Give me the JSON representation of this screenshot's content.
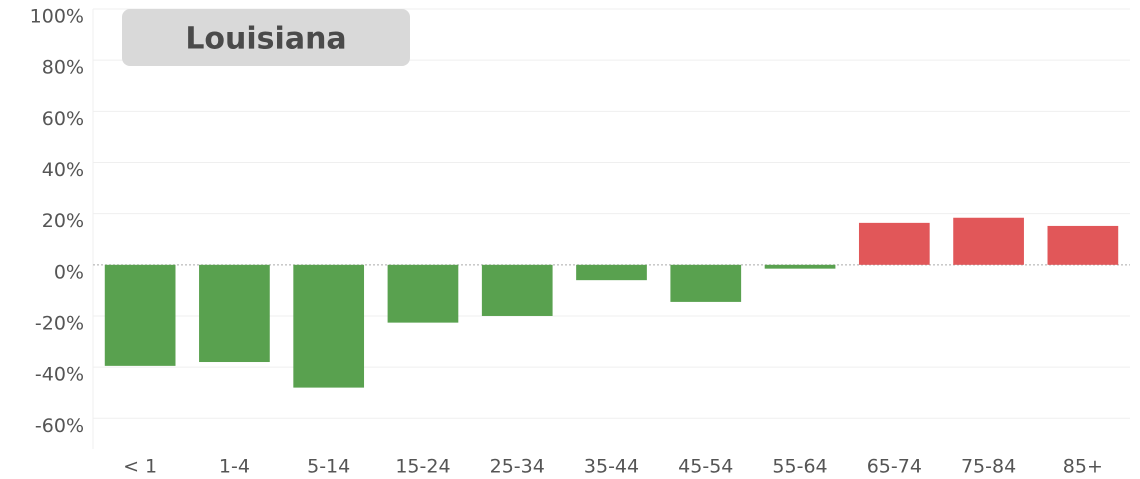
{
  "chart_data": {
    "type": "bar",
    "title": "Louisiana",
    "categories": [
      "< 1",
      "1-4",
      "5-14",
      "15-24",
      "25-34",
      "35-44",
      "45-54",
      "55-64",
      "65-74",
      "75-84",
      "85+"
    ],
    "values": [
      -39.5,
      -38,
      -48,
      -22.6,
      -20,
      -6,
      -14.5,
      -1.5,
      16.4,
      18.4,
      15.2
    ],
    "colors": [
      "#59a14f",
      "#59a14f",
      "#59a14f",
      "#59a14f",
      "#59a14f",
      "#59a14f",
      "#59a14f",
      "#59a14f",
      "#e15759",
      "#e15759",
      "#e15759"
    ],
    "ylim": [
      -72,
      100
    ],
    "yticks": [
      {
        "value": -60,
        "label": "-60%"
      },
      {
        "value": -40,
        "label": "-40%"
      },
      {
        "value": -20,
        "label": "-20%"
      },
      {
        "value": 0,
        "label": "0%"
      },
      {
        "value": 20,
        "label": "20%"
      },
      {
        "value": 40,
        "label": "40%"
      },
      {
        "value": 60,
        "label": "60%"
      },
      {
        "value": 80,
        "label": "80%"
      },
      {
        "value": 100,
        "label": "100%"
      }
    ],
    "grid": true
  }
}
